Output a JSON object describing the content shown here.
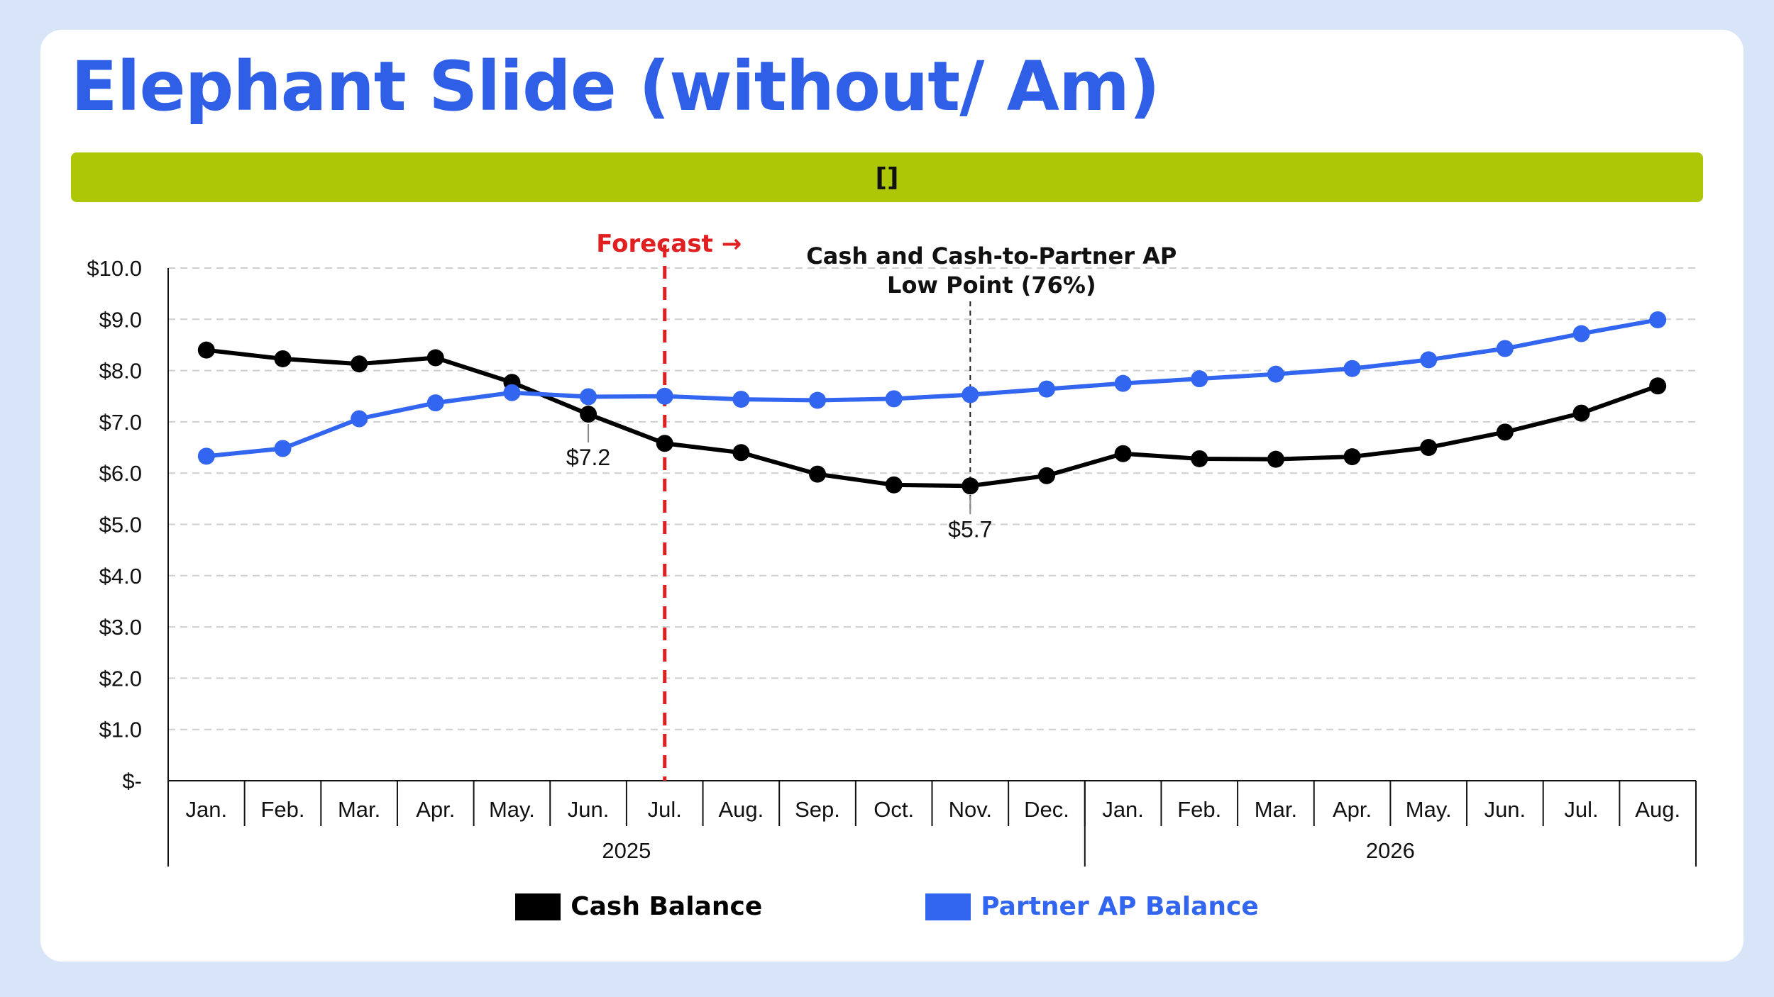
{
  "page": {
    "title": "Elephant Slide (without/ Am)",
    "banner_text": "[]"
  },
  "colors": {
    "page_bg": "#d8e4f8",
    "title": "#2e5fe6",
    "banner": "#adc606",
    "cash_series": "#000000",
    "partner_series": "#3366f0",
    "forecast": "#e02020"
  },
  "chart_data": {
    "type": "line",
    "title": "",
    "xlabel": "",
    "ylabel": "",
    "ylim": [
      0,
      10
    ],
    "y_ticks": [
      "$-",
      "$1.0",
      "$2.0",
      "$3.0",
      "$4.0",
      "$5.0",
      "$6.0",
      "$7.0",
      "$8.0",
      "$9.0",
      "$10.0"
    ],
    "categories": [
      "Jan.",
      "Feb.",
      "Mar.",
      "Apr.",
      "May.",
      "Jun.",
      "Jul.",
      "Aug.",
      "Sep.",
      "Oct.",
      "Nov.",
      "Dec.",
      "Jan.",
      "Feb.",
      "Mar.",
      "Apr.",
      "May.",
      "Jun.",
      "Jul.",
      "Aug."
    ],
    "year_groups": [
      {
        "label": "2025",
        "count": 12
      },
      {
        "label": "2026",
        "count": 8
      }
    ],
    "series": [
      {
        "name": "Cash Balance",
        "color": "#000000",
        "values": [
          8.4,
          8.23,
          8.13,
          8.25,
          7.77,
          7.15,
          6.58,
          6.4,
          5.98,
          5.77,
          5.75,
          5.95,
          6.38,
          6.28,
          6.27,
          6.32,
          6.5,
          6.8,
          7.17,
          7.7
        ]
      },
      {
        "name": "Partner AP Balance",
        "color": "#3366f0",
        "values": [
          6.33,
          6.48,
          7.06,
          7.37,
          7.57,
          7.49,
          7.5,
          7.44,
          7.42,
          7.45,
          7.53,
          7.64,
          7.75,
          7.84,
          7.93,
          8.04,
          8.21,
          8.43,
          8.72,
          8.99
        ]
      }
    ],
    "annotations": {
      "forecast_label": "Forecast →",
      "forecast_after_index": 6,
      "low_point_title_line1": "Cash and Cash-to-Partner AP",
      "low_point_title_line2": "Low Point (76%)",
      "low_point_index": 10,
      "cash_label_jun": "$7.2",
      "cash_label_jun_index": 5,
      "cash_label_nov": "$5.7",
      "cash_label_nov_index": 10
    },
    "legend_position": "bottom-center",
    "grid": true
  }
}
